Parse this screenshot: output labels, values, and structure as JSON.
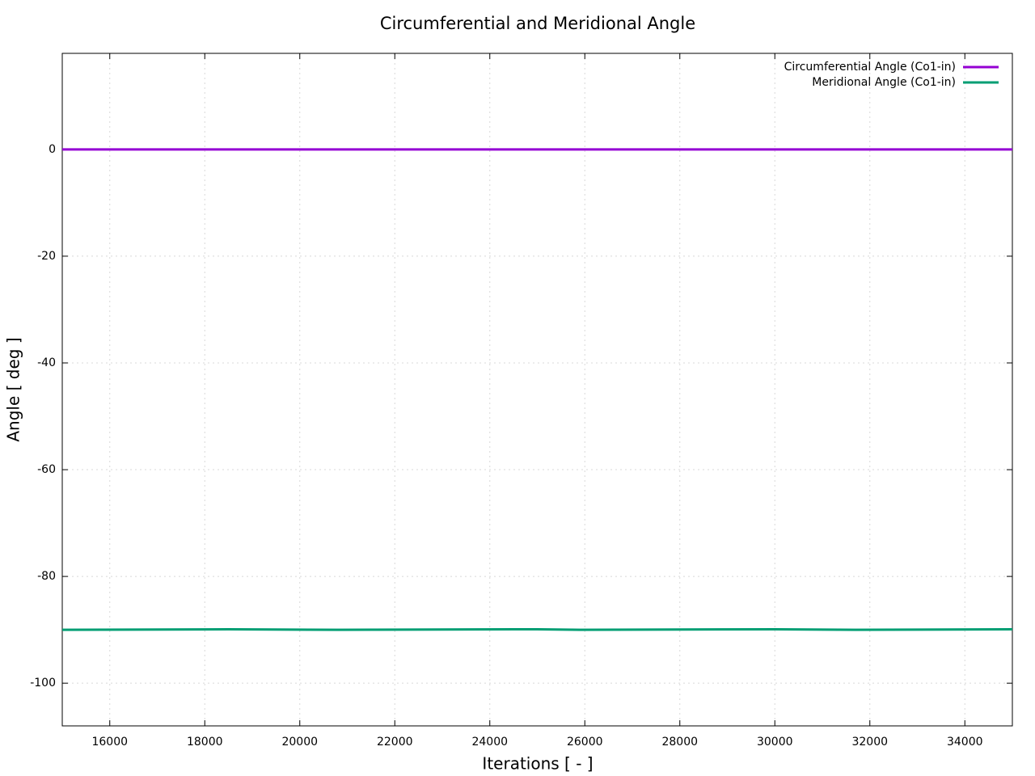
{
  "chart_data": {
    "type": "line",
    "title": "Circumferential and Meridional Angle",
    "x_label": "Iterations [ - ]",
    "y_label": "Angle [ deg ]",
    "x": [
      15000,
      18500,
      20800,
      25000,
      25900,
      30000,
      31700,
      35000
    ],
    "series": [
      {
        "name": "Circumferential Angle (Co1-in)",
        "color": "#9400d3",
        "values": [
          0,
          0,
          0,
          0,
          0,
          0,
          0,
          0
        ]
      },
      {
        "name": "Meridional Angle (Co1-in)",
        "color": "#009e73",
        "values": [
          -90,
          -89.9,
          -90,
          -89.9,
          -90,
          -89.9,
          -90,
          -89.9
        ]
      }
    ],
    "xlim": [
      15000,
      35000
    ],
    "xticks": [
      16000,
      18000,
      20000,
      22000,
      24000,
      26000,
      28000,
      30000,
      32000,
      34000
    ],
    "ylim": [
      -108,
      18
    ],
    "yticks": [
      -100,
      -80,
      -60,
      -40,
      -20,
      0
    ],
    "grid": true,
    "legend": "top-right"
  }
}
